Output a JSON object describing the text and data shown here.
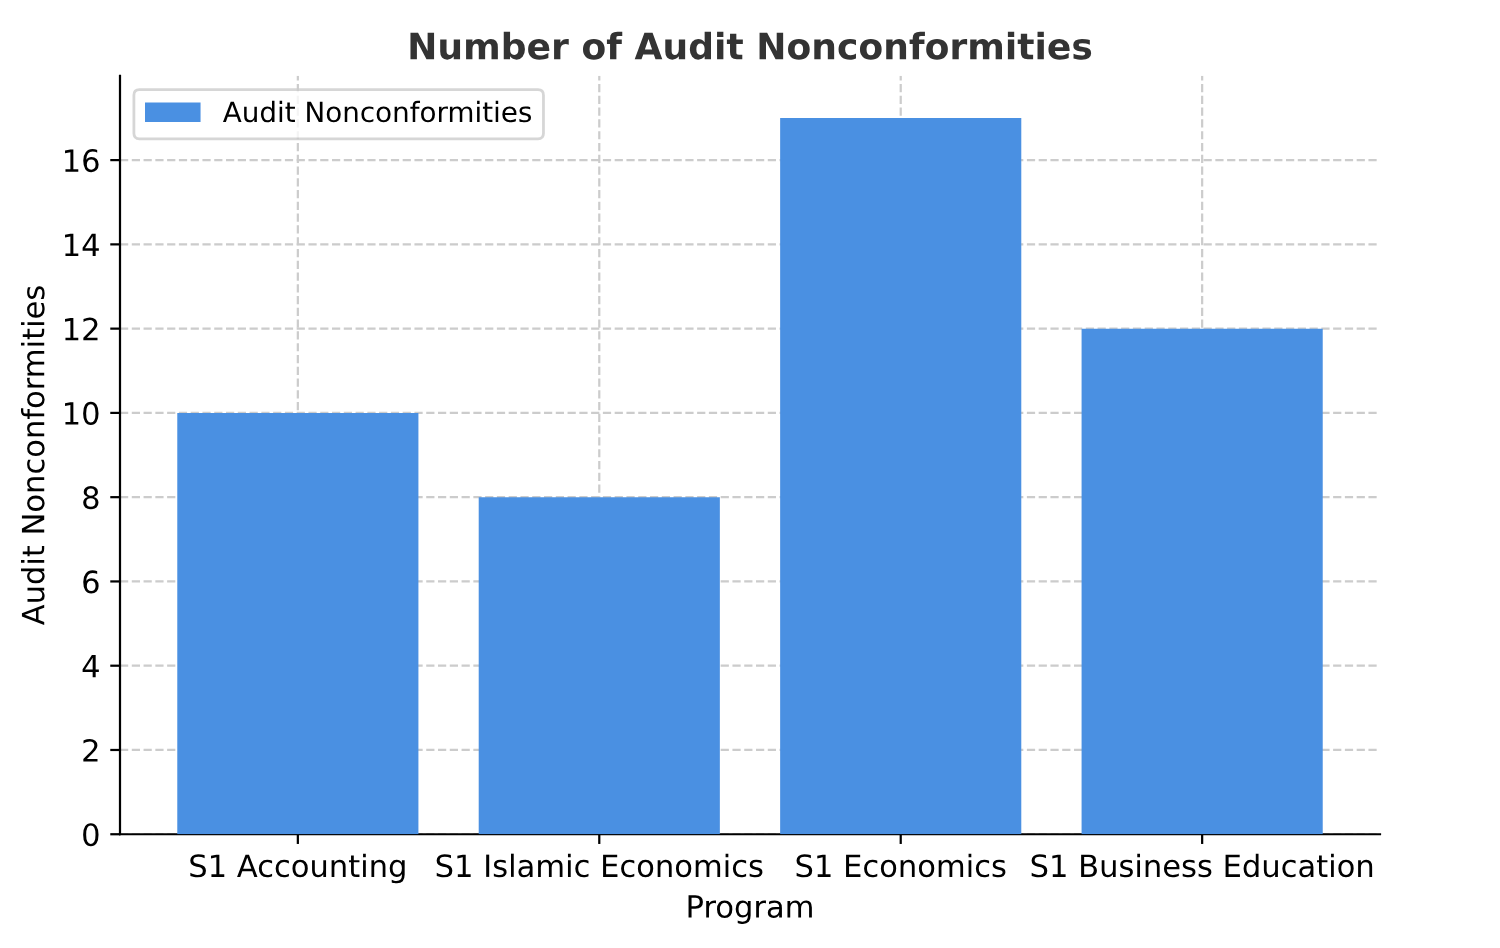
{
  "chart_data": {
    "type": "bar",
    "title": "Number of Audit Nonconformities",
    "xlabel": "Program",
    "ylabel": "Audit Nonconformities",
    "categories": [
      "S1 Accounting",
      "S1 Islamic Economics",
      "S1 Economics",
      "S1 Business Education"
    ],
    "series": [
      {
        "name": "Audit Nonconformities",
        "color": "#4a90e2",
        "values": [
          10,
          8,
          17,
          12
        ]
      }
    ],
    "ylim": [
      0,
      18
    ],
    "yticks": [
      0,
      2,
      4,
      6,
      8,
      10,
      12,
      14,
      16
    ],
    "grid": true,
    "legend": "top left"
  }
}
